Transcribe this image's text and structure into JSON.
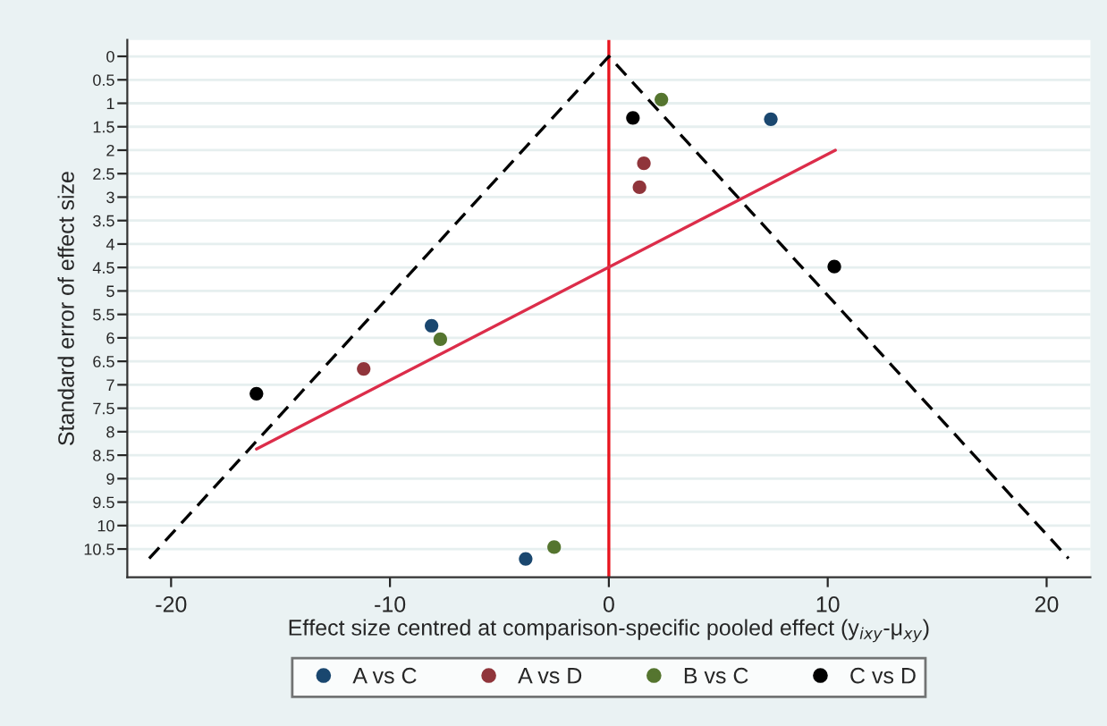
{
  "chart_data": {
    "type": "scatter",
    "xlabel": "Effect size centred at comparison-specific pooled effect (y$_{ixy}$-μ$_{xy}$)",
    "ylabel": "Standard error of effect size",
    "xlim": [
      -22,
      22
    ],
    "xticks": [
      -20,
      -10,
      0,
      10,
      20
    ],
    "ylim": [
      11.1,
      -0.35
    ],
    "yticks": [
      0,
      0.5,
      1,
      1.5,
      2,
      2.5,
      3,
      3.5,
      4,
      4.5,
      5,
      5.5,
      6,
      6.5,
      7,
      7.5,
      8,
      8.5,
      9,
      9.5,
      10,
      10.5
    ],
    "grid": "y",
    "legend": "bottom",
    "marker": "circle",
    "series": [
      {
        "name": "A vs C",
        "color": "#1a476f",
        "x": [
          7.4,
          -8.1,
          -3.8
        ],
        "values": [
          1.34,
          5.74,
          10.71
        ]
      },
      {
        "name": "A vs D",
        "color": "#90353b",
        "x": [
          1.6,
          1.4,
          -11.2
        ],
        "values": [
          2.28,
          2.79,
          6.66
        ]
      },
      {
        "name": "B vs C",
        "color": "#55752f",
        "x": [
          2.4,
          -7.7,
          -2.5
        ],
        "values": [
          0.92,
          6.03,
          10.46
        ]
      },
      {
        "name": "C vs D",
        "color": "#000000",
        "x": [
          1.1,
          10.3,
          -16.1
        ],
        "values": [
          1.31,
          4.48,
          7.19
        ]
      },
      {
        "type": "line",
        "color": "#000000",
        "line_style": "dashed",
        "marker": "none",
        "x": [
          -21,
          0,
          21
        ],
        "values": [
          10.7,
          0,
          10.7
        ]
      },
      {
        "type": "line",
        "color": "#dc2d4a",
        "line_style": "solid",
        "marker": "none",
        "x": [
          -16.1,
          10.35
        ],
        "values": [
          8.37,
          2.0
        ]
      }
    ],
    "ref_lines": [
      {
        "axis": "x",
        "value": 0,
        "color": "#e8141e",
        "line_style": "solid"
      }
    ]
  }
}
